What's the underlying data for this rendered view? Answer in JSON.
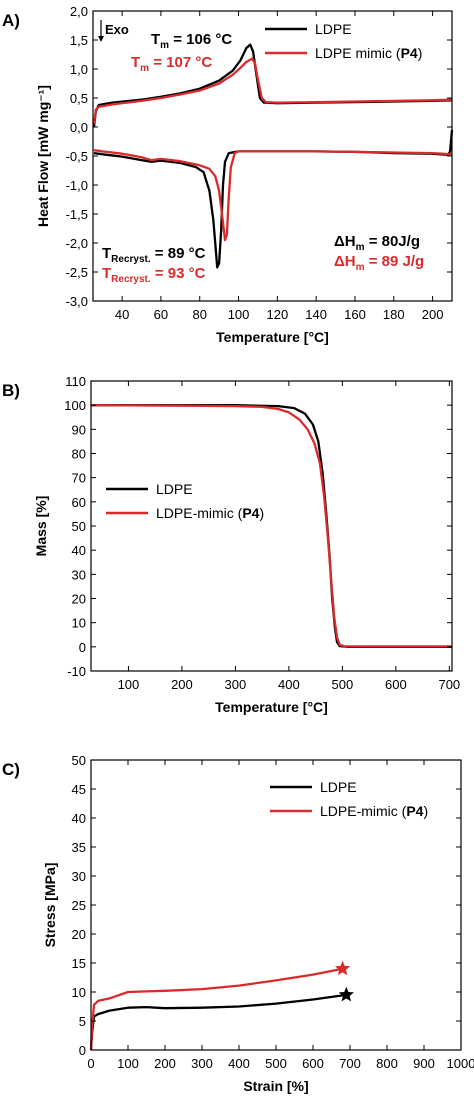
{
  "colors": {
    "ldpe": "#000000",
    "mimic": "#d92b2b"
  },
  "chart_data": [
    {
      "panel": "A)",
      "type": "line",
      "xlabel": "Temperature [°C]",
      "ylabel": "Heat Flow [mW mg⁻¹]",
      "xlim": [
        25,
        210
      ],
      "ylim": [
        -3.0,
        2.0
      ],
      "xticks": [
        40,
        60,
        80,
        100,
        120,
        140,
        160,
        180,
        200
      ],
      "yticks": [
        -3.0,
        -2.5,
        -2.0,
        -1.5,
        -1.0,
        -0.5,
        0.0,
        0.5,
        1.0,
        1.5,
        2.0
      ],
      "ytick_labels": [
        "-3,0",
        "-2,5",
        "-2,0",
        "-1,5",
        "-1,0",
        "-0,5",
        "0,0",
        "0,5",
        "1,0",
        "1,5",
        "2,0"
      ],
      "legend": {
        "position": "top-right",
        "entries": [
          {
            "label": "LDPE",
            "color": "#000000"
          },
          {
            "label": "LDPE mimic (P4)",
            "color": "#d92b2b"
          }
        ]
      },
      "annotations": [
        {
          "id": "exo",
          "text": "Exo"
        },
        {
          "id": "tm_ldpe",
          "text": "Tm = 106 °C",
          "main": "T",
          "sub": "m",
          "rest": " = 106 °C",
          "color": "#000000"
        },
        {
          "id": "tm_mimic",
          "text": "Tm = 107 °C",
          "main": "T",
          "sub": "m",
          "rest": " = 107 °C",
          "color": "#d92b2b"
        },
        {
          "id": "trc_ldpe",
          "text": "TRecryst. = 89 °C",
          "main": "T",
          "sub": "Recryst.",
          "rest": " = 89 °C",
          "color": "#000000"
        },
        {
          "id": "trc_mimic",
          "text": "TRecryst. = 93 °C",
          "main": "T",
          "sub": "Recryst.",
          "rest": " = 93 °C",
          "color": "#d92b2b"
        },
        {
          "id": "dh_ldpe",
          "text": "ΔHm = 80J/g",
          "main": "ΔH",
          "sub": "m",
          "rest": " = 80J/g",
          "color": "#000000"
        },
        {
          "id": "dh_mimic",
          "text": "ΔHm = 89 J/g",
          "main": "ΔH",
          "sub": "m",
          "rest": " = 89 J/g",
          "color": "#d92b2b"
        }
      ],
      "series": [
        {
          "name": "LDPE",
          "color": "#000000",
          "segments": [
            [
              [
                25.5,
                0.0
              ],
              [
                26.5,
                0.28
              ],
              [
                28,
                0.38
              ],
              [
                35,
                0.42
              ],
              [
                50,
                0.47
              ],
              [
                60,
                0.52
              ],
              [
                70,
                0.58
              ],
              [
                80,
                0.66
              ],
              [
                90,
                0.8
              ],
              [
                97,
                0.97
              ],
              [
                101,
                1.15
              ],
              [
                104,
                1.36
              ],
              [
                106,
                1.42
              ],
              [
                107.5,
                1.3
              ],
              [
                109,
                0.95
              ],
              [
                111,
                0.5
              ],
              [
                113,
                0.42
              ],
              [
                120,
                0.41
              ],
              [
                140,
                0.42
              ],
              [
                160,
                0.43
              ],
              [
                180,
                0.44
              ],
              [
                200,
                0.45
              ],
              [
                210,
                0.46
              ]
            ],
            [
              [
                25.5,
                -0.45
              ],
              [
                30,
                -0.47
              ],
              [
                40,
                -0.51
              ],
              [
                50,
                -0.57
              ],
              [
                55,
                -0.6
              ],
              [
                60,
                -0.58
              ],
              [
                70,
                -0.62
              ],
              [
                78,
                -0.69
              ],
              [
                82,
                -0.78
              ],
              [
                85,
                -1.1
              ],
              [
                87,
                -1.6
              ],
              [
                88.5,
                -2.2
              ],
              [
                89,
                -2.42
              ],
              [
                90,
                -2.35
              ],
              [
                91,
                -1.8
              ],
              [
                92,
                -1.0
              ],
              [
                93,
                -0.6
              ],
              [
                95,
                -0.45
              ],
              [
                100,
                -0.42
              ],
              [
                120,
                -0.42
              ],
              [
                140,
                -0.42
              ],
              [
                160,
                -0.43
              ],
              [
                180,
                -0.45
              ],
              [
                200,
                -0.46
              ],
              [
                208,
                -0.48
              ],
              [
                209,
                -0.42
              ],
              [
                210,
                -0.05
              ]
            ]
          ]
        },
        {
          "name": "LDPE mimic (P4)",
          "color": "#d92b2b",
          "segments": [
            [
              [
                25.5,
                0.05
              ],
              [
                26.5,
                0.3
              ],
              [
                28,
                0.35
              ],
              [
                35,
                0.39
              ],
              [
                50,
                0.45
              ],
              [
                60,
                0.5
              ],
              [
                70,
                0.56
              ],
              [
                80,
                0.63
              ],
              [
                90,
                0.75
              ],
              [
                97,
                0.9
              ],
              [
                101,
                1.02
              ],
              [
                104,
                1.12
              ],
              [
                107,
                1.18
              ],
              [
                108.5,
                1.1
              ],
              [
                110,
                0.82
              ],
              [
                112,
                0.5
              ],
              [
                114,
                0.43
              ],
              [
                120,
                0.42
              ],
              [
                140,
                0.43
              ],
              [
                160,
                0.44
              ],
              [
                180,
                0.45
              ],
              [
                200,
                0.46
              ],
              [
                210,
                0.47
              ]
            ],
            [
              [
                25.5,
                -0.4
              ],
              [
                30,
                -0.42
              ],
              [
                40,
                -0.46
              ],
              [
                50,
                -0.52
              ],
              [
                55,
                -0.57
              ],
              [
                60,
                -0.55
              ],
              [
                70,
                -0.59
              ],
              [
                80,
                -0.66
              ],
              [
                85,
                -0.72
              ],
              [
                88,
                -0.85
              ],
              [
                90,
                -1.1
              ],
              [
                91.5,
                -1.5
              ],
              [
                93,
                -1.95
              ],
              [
                94,
                -1.85
              ],
              [
                95,
                -1.2
              ],
              [
                96,
                -0.7
              ],
              [
                98,
                -0.45
              ],
              [
                100,
                -0.42
              ],
              [
                120,
                -0.42
              ],
              [
                140,
                -0.42
              ],
              [
                160,
                -0.43
              ],
              [
                180,
                -0.44
              ],
              [
                200,
                -0.45
              ],
              [
                210,
                -0.47
              ]
            ]
          ]
        }
      ]
    },
    {
      "panel": "B)",
      "type": "line",
      "xlabel": "Temperature [°C]",
      "ylabel": "Mass [%]",
      "xlim": [
        30,
        705
      ],
      "ylim": [
        -10,
        110
      ],
      "xticks": [
        100,
        200,
        300,
        400,
        500,
        600,
        700
      ],
      "yticks": [
        -10,
        0,
        10,
        20,
        30,
        40,
        50,
        60,
        70,
        80,
        90,
        100,
        110
      ],
      "ytick_labels": [
        "-10",
        "0",
        "10",
        "20",
        "30",
        "40",
        "50",
        "60",
        "70",
        "80",
        "90",
        "100",
        "110"
      ],
      "legend": {
        "position": "center-left",
        "entries": [
          {
            "label": "LDPE",
            "color": "#000000"
          },
          {
            "label": "LDPE-mimic (P4)",
            "color": "#d92b2b",
            "main": "LDPE-mimic (",
            "bold": "P4",
            "close": ")"
          }
        ]
      },
      "series": [
        {
          "name": "LDPE",
          "color": "#000000",
          "segments": [
            [
              [
                30,
                100
              ],
              [
                200,
                100
              ],
              [
                300,
                100
              ],
              [
                380,
                99.6
              ],
              [
                410,
                98.8
              ],
              [
                430,
                96.5
              ],
              [
                445,
                92
              ],
              [
                455,
                85
              ],
              [
                463,
                72
              ],
              [
                470,
                55
              ],
              [
                476,
                38
              ],
              [
                481,
                20
              ],
              [
                486,
                8
              ],
              [
                490,
                2
              ],
              [
                495,
                0.3
              ],
              [
                510,
                0
              ],
              [
                600,
                0
              ],
              [
                705,
                0
              ]
            ]
          ]
        },
        {
          "name": "LDPE-mimic (P4)",
          "color": "#d92b2b",
          "segments": [
            [
              [
                30,
                100
              ],
              [
                200,
                99.8
              ],
              [
                300,
                99.6
              ],
              [
                350,
                99.3
              ],
              [
                380,
                98.4
              ],
              [
                400,
                97
              ],
              [
                420,
                94
              ],
              [
                435,
                90
              ],
              [
                448,
                84
              ],
              [
                458,
                76
              ],
              [
                466,
                62
              ],
              [
                473,
                45
              ],
              [
                479,
                28
              ],
              [
                485,
                12
              ],
              [
                490,
                4
              ],
              [
                495,
                0.8
              ],
              [
                505,
                0.2
              ],
              [
                600,
                0.2
              ],
              [
                705,
                0.2
              ]
            ]
          ]
        }
      ]
    },
    {
      "panel": "C)",
      "type": "line",
      "xlabel": "Strain [%]",
      "ylabel": "Stress [MPa]",
      "xlim": [
        0,
        1000
      ],
      "ylim": [
        0,
        50
      ],
      "xticks": [
        0,
        100,
        200,
        300,
        400,
        500,
        600,
        700,
        800,
        900,
        1000
      ],
      "yticks": [
        0,
        5,
        10,
        15,
        20,
        25,
        30,
        35,
        40,
        45,
        50
      ],
      "ytick_labels": [
        "0",
        "5",
        "10",
        "15",
        "20",
        "25",
        "30",
        "35",
        "40",
        "45",
        "50"
      ],
      "legend": {
        "position": "top-right",
        "entries": [
          {
            "label": "LDPE",
            "color": "#000000"
          },
          {
            "label": "LDPE-mimic (P4)",
            "color": "#d92b2b",
            "main": "LDPE-mimic (",
            "bold": "P4",
            "close": ")"
          }
        ]
      },
      "series": [
        {
          "name": "LDPE",
          "color": "#000000",
          "segments": [
            [
              [
                0,
                0
              ],
              [
                3,
                3
              ],
              [
                8,
                5.8
              ],
              [
                20,
                6.2
              ],
              [
                50,
                6.8
              ],
              [
                100,
                7.3
              ],
              [
                150,
                7.4
              ],
              [
                200,
                7.2
              ],
              [
                300,
                7.3
              ],
              [
                400,
                7.5
              ],
              [
                500,
                8.0
              ],
              [
                600,
                8.7
              ],
              [
                690,
                9.5
              ]
            ]
          ]
        },
        {
          "name": "LDPE-mimic (P4)",
          "color": "#d92b2b",
          "segments": [
            [
              [
                0,
                0
              ],
              [
                3,
                4
              ],
              [
                8,
                7.8
              ],
              [
                20,
                8.5
              ],
              [
                50,
                8.9
              ],
              [
                100,
                10.0
              ],
              [
                150,
                10.1
              ],
              [
                200,
                10.2
              ],
              [
                300,
                10.5
              ],
              [
                400,
                11.1
              ],
              [
                500,
                12.0
              ],
              [
                600,
                13.0
              ],
              [
                680,
                14.0
              ]
            ]
          ]
        }
      ],
      "break_points": [
        {
          "x": 690,
          "y": 9.5,
          "color": "#000000"
        },
        {
          "x": 680,
          "y": 14.0,
          "color": "#d92b2b"
        }
      ]
    }
  ]
}
